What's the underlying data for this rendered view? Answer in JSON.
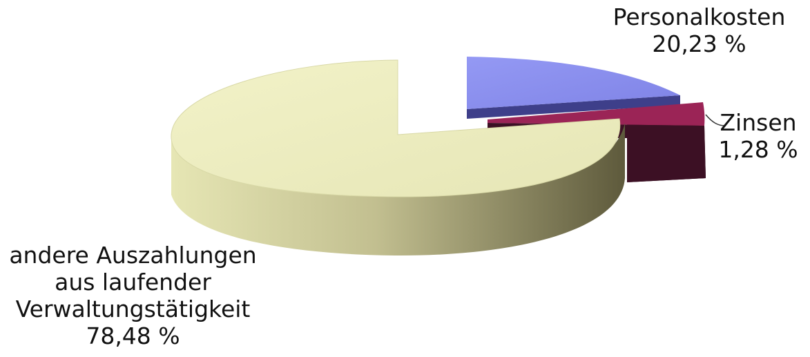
{
  "chart_data": {
    "type": "pie",
    "style": "3d-exploded",
    "slices": [
      {
        "label": "Personalkosten",
        "value": 20.23,
        "value_text": "20,23 %",
        "color": "#8b8ff0"
      },
      {
        "label": "Zinsen",
        "value": 1.28,
        "value_text": "1,28 %",
        "color": "#5a1a36"
      },
      {
        "label": "andere Auszahlungen aus laufender Verwaltungstätigkeit",
        "value": 78.48,
        "value_text": "78,48 %",
        "color": "#eeeebf"
      }
    ],
    "label_lines": {
      "andere": [
        "andere Auszahlungen",
        "aus laufender",
        "Verwaltungstätigkeit"
      ]
    },
    "title": "",
    "legend": "none"
  }
}
